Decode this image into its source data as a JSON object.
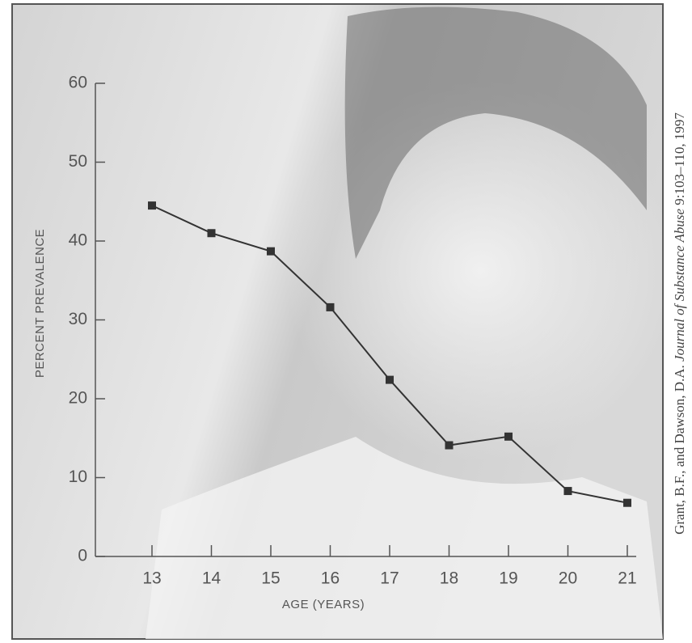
{
  "chart_data": {
    "type": "line",
    "x": [
      13,
      14,
      15,
      16,
      17,
      18,
      19,
      20,
      21
    ],
    "series": [
      {
        "color": "#333333",
        "values": [
          44.5,
          41.0,
          38.7,
          31.6,
          22.4,
          14.1,
          15.2,
          8.3,
          6.8
        ]
      }
    ],
    "xlim": [
      12,
      21.15
    ],
    "xticks": [
      13,
      14,
      15,
      16,
      17,
      18,
      19,
      20,
      21
    ],
    "ylim": [
      0,
      60
    ],
    "yticks": [
      0,
      10,
      20,
      30,
      40,
      50,
      60
    ],
    "x_label": "AGE (YEARS)",
    "y_label": "PERCENT PREVALENCE",
    "source": {
      "authors": "Grant, B.F., and Dawson, D.A.",
      "journal": "Journal of Substance Abuse",
      "details": "9:103–110, 1997"
    }
  }
}
